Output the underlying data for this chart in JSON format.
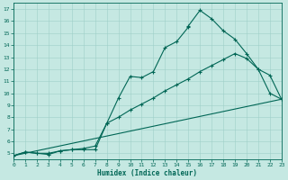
{
  "xlabel": "Humidex (Indice chaleur)",
  "xlim": [
    0,
    23
  ],
  "ylim": [
    4.5,
    17.5
  ],
  "xticks": [
    0,
    1,
    2,
    3,
    4,
    5,
    6,
    7,
    8,
    9,
    10,
    11,
    12,
    13,
    14,
    15,
    16,
    17,
    18,
    19,
    20,
    21,
    22,
    23
  ],
  "yticks": [
    5,
    6,
    7,
    8,
    9,
    10,
    11,
    12,
    13,
    14,
    15,
    16,
    17
  ],
  "bg_color": "#c5e8e2",
  "grid_color": "#9ecfc8",
  "line_color": "#006655",
  "line1_x": [
    0,
    1,
    2,
    3,
    4,
    5,
    6,
    7,
    8,
    9,
    10,
    11,
    12,
    13,
    14,
    15,
    15,
    16,
    17,
    18,
    19,
    20,
    21,
    22,
    23
  ],
  "line1_y": [
    4.8,
    5.1,
    5.0,
    5.0,
    5.2,
    5.3,
    5.4,
    5.6,
    7.5,
    9.6,
    11.4,
    11.3,
    11.8,
    13.8,
    14.3,
    15.5,
    15.6,
    16.9,
    16.2,
    15.2,
    14.5,
    13.3,
    12.0,
    11.5,
    9.5
  ],
  "line2_x": [
    0,
    1,
    2,
    3,
    4,
    5,
    6,
    7,
    8,
    9,
    10,
    11,
    12,
    13,
    14,
    15,
    16,
    17,
    18,
    19,
    20,
    21,
    22,
    23
  ],
  "line2_y": [
    4.8,
    5.1,
    5.0,
    4.9,
    5.2,
    5.3,
    5.3,
    5.3,
    7.5,
    8.0,
    8.6,
    9.1,
    9.6,
    10.2,
    10.7,
    11.2,
    11.8,
    12.3,
    12.8,
    13.3,
    12.9,
    12.0,
    10.0,
    9.5
  ],
  "line3_x": [
    0,
    23
  ],
  "line3_y": [
    4.8,
    9.5
  ],
  "figsize": [
    3.2,
    2.0
  ],
  "dpi": 100
}
